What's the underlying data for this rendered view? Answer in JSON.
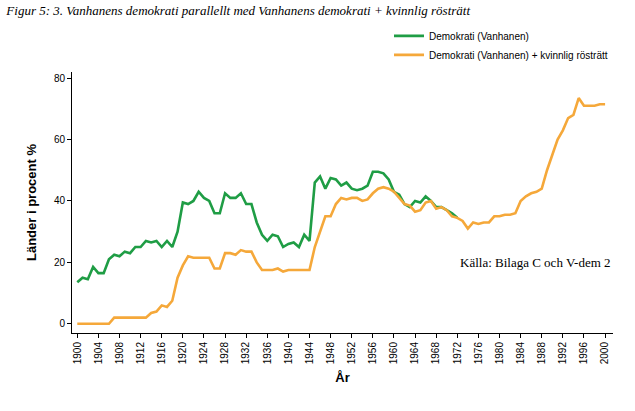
{
  "chart_data": {
    "type": "line",
    "title": "Figur 5: 3. Vanhanens demokrati parallellt med Vanhanens demokrati + kvinnlig rösträtt",
    "x_label": "År",
    "y_label": "Länder i procent %",
    "x": [
      1900,
      1901,
      1902,
      1903,
      1904,
      1905,
      1906,
      1907,
      1908,
      1909,
      1910,
      1911,
      1912,
      1913,
      1914,
      1915,
      1916,
      1917,
      1918,
      1919,
      1920,
      1921,
      1922,
      1923,
      1924,
      1925,
      1926,
      1927,
      1928,
      1929,
      1930,
      1931,
      1932,
      1933,
      1934,
      1935,
      1936,
      1937,
      1938,
      1939,
      1940,
      1941,
      1942,
      1943,
      1944,
      1945,
      1946,
      1947,
      1948,
      1949,
      1950,
      1951,
      1952,
      1953,
      1954,
      1955,
      1956,
      1957,
      1958,
      1959,
      1960,
      1961,
      1962,
      1963,
      1964,
      1965,
      1966,
      1967,
      1968,
      1969,
      1970,
      1971,
      1972,
      1973,
      1974,
      1975,
      1976,
      1977,
      1978,
      1979,
      1980,
      1981,
      1982,
      1983,
      1984,
      1985,
      1986,
      1987,
      1988,
      1989,
      1990,
      1991,
      1992,
      1993,
      1994,
      1995,
      1996,
      1997,
      1998,
      1999,
      2000
    ],
    "series": [
      {
        "name": "Demokrati (Vanhanen)",
        "color": "#1f9d45",
        "values": [
          13.5,
          15,
          14.5,
          18.5,
          16.5,
          16.5,
          21,
          22.5,
          22,
          23.5,
          23,
          25,
          25,
          27,
          26.5,
          27,
          25,
          27,
          25,
          30,
          39.5,
          39,
          40,
          43,
          41,
          40,
          36,
          36,
          42.5,
          41,
          41,
          42.5,
          39,
          39,
          33,
          29,
          27,
          29,
          28.5,
          25,
          26,
          26.5,
          25,
          29,
          27,
          46,
          48,
          44,
          47.5,
          47,
          45,
          46,
          44,
          43.5,
          44,
          45,
          49.5,
          49.5,
          49,
          47,
          43,
          42,
          39,
          38,
          40,
          39.5,
          41.5,
          40,
          38,
          38,
          37,
          36,
          34.5,
          null,
          null,
          null,
          null,
          null,
          null,
          null,
          null,
          null,
          null,
          null,
          null,
          null,
          null,
          null,
          null,
          null,
          null,
          null,
          null,
          null,
          null,
          null,
          null,
          null,
          null,
          null,
          null
        ]
      },
      {
        "name": "Demokrati (Vanhanen) + kvinnlig rösträtt",
        "color": "#f5a83a",
        "values": [
          0,
          0,
          0,
          0,
          0,
          0,
          0,
          2,
          2,
          2,
          2,
          2,
          2,
          2,
          3.5,
          4,
          6,
          5.5,
          7.5,
          15,
          19,
          22,
          21.5,
          21.5,
          21.5,
          21.5,
          18,
          18,
          23,
          23,
          22.5,
          24,
          23.5,
          23.5,
          20,
          17.5,
          17.5,
          17.5,
          18,
          17,
          17.5,
          17.5,
          17.5,
          17.5,
          17.5,
          25,
          30,
          35,
          35,
          39,
          41,
          40.5,
          41,
          41,
          40,
          40.5,
          42.5,
          44,
          44.5,
          44,
          43,
          41,
          39,
          38.5,
          36.5,
          37,
          39.5,
          40,
          37.5,
          38,
          37,
          35,
          34.5,
          33.5,
          31,
          33,
          32.5,
          33,
          33,
          35,
          35,
          35.5,
          35.5,
          36,
          40,
          41.5,
          42.5,
          43,
          44,
          50,
          55,
          60,
          63,
          67,
          68,
          73.5,
          71,
          71,
          71,
          71.5,
          71.5
        ]
      }
    ],
    "xlim": [
      1899,
      2001.5
    ],
    "ylim": [
      -3,
      82
    ],
    "xticks": [
      1900,
      1904,
      1908,
      1912,
      1916,
      1920,
      1924,
      1928,
      1932,
      1936,
      1940,
      1944,
      1948,
      1952,
      1956,
      1960,
      1964,
      1968,
      1972,
      1976,
      1980,
      1984,
      1988,
      1992,
      1996,
      2000
    ],
    "yticks": [
      0,
      20,
      40,
      60,
      80
    ],
    "grid": false,
    "legend": "top right",
    "annotations": [
      "Källa: Bilaga C och V-dem 2"
    ]
  }
}
